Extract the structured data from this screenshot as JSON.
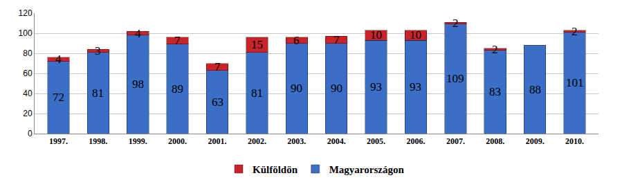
{
  "chart_data": {
    "type": "bar",
    "stacked": true,
    "data_labels": true,
    "grid": true,
    "legend": "bottom",
    "categories": [
      "1997.",
      "1998.",
      "1999.",
      "2000.",
      "2001.",
      "2002.",
      "2003.",
      "2004.",
      "2005.",
      "2006.",
      "2007.",
      "2008.",
      "2009.",
      "2010."
    ],
    "series": [
      {
        "name": "Magyarországon",
        "color": "#3b6fc6",
        "values": [
          72,
          81,
          98,
          89,
          63,
          81,
          90,
          90,
          93,
          93,
          109,
          83,
          88,
          101
        ]
      },
      {
        "name": "Külföldön",
        "color": "#c8242a",
        "values": [
          4,
          3,
          4,
          7,
          7,
          15,
          6,
          7,
          10,
          10,
          2,
          2,
          null,
          2
        ]
      }
    ],
    "ylim": [
      0,
      120
    ],
    "yticks": [
      0,
      20,
      40,
      60,
      80,
      100,
      120
    ]
  }
}
